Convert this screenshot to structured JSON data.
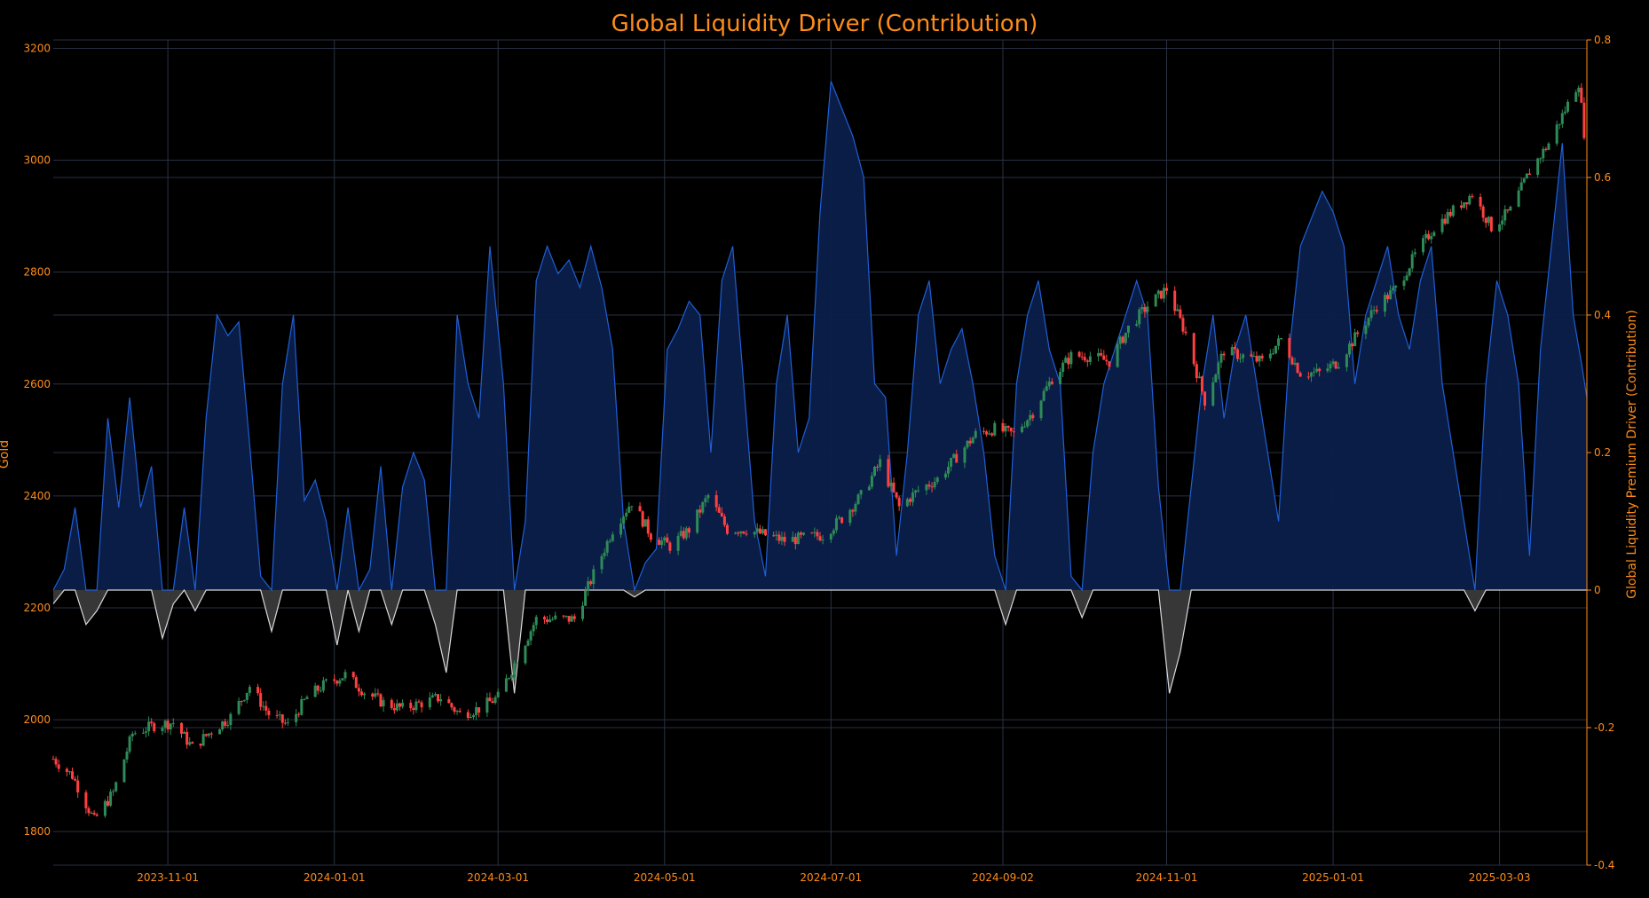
{
  "chart_data": {
    "type": "candlestick+area",
    "title": "Global Liquidity Driver (Contribution)",
    "y_left_label": "Gold",
    "y_right_label": "Global Liquidity Premium Driver (Contribution)",
    "x_ticks": [
      "2023-11-01",
      "2024-01-01",
      "2024-03-01",
      "2024-05-01",
      "2024-07-01",
      "2024-09-02",
      "2024-11-01",
      "2025-01-01",
      "2025-03-03"
    ],
    "y_left_ticks": [
      1800,
      2000,
      2200,
      2400,
      2600,
      2800,
      3000,
      3200
    ],
    "y_left_range": [
      1740,
      3215
    ],
    "y_right_ticks": [
      -0.4,
      -0.2,
      0,
      0.2,
      0.4,
      0.6,
      0.8
    ],
    "y_right_range": [
      -0.4,
      0.8
    ],
    "x_range": [
      "2023-09-20",
      "2025-04-04"
    ],
    "gold_close_path": [
      [
        "2023-09-20",
        1930
      ],
      [
        "2023-09-27",
        1900
      ],
      [
        "2023-10-05",
        1820
      ],
      [
        "2023-10-12",
        1870
      ],
      [
        "2023-10-19",
        1975
      ],
      [
        "2023-10-27",
        1990
      ],
      [
        "2023-11-03",
        1995
      ],
      [
        "2023-11-10",
        1950
      ],
      [
        "2023-11-17",
        1980
      ],
      [
        "2023-11-24",
        2005
      ],
      [
        "2023-12-01",
        2060
      ],
      [
        "2023-12-08",
        2010
      ],
      [
        "2023-12-15",
        1990
      ],
      [
        "2023-12-22",
        2040
      ],
      [
        "2023-12-29",
        2065
      ],
      [
        "2024-01-05",
        2080
      ],
      [
        "2024-01-12",
        2050
      ],
      [
        "2024-01-19",
        2030
      ],
      [
        "2024-01-26",
        2020
      ],
      [
        "2024-02-02",
        2030
      ],
      [
        "2024-02-09",
        2040
      ],
      [
        "2024-02-16",
        2010
      ],
      [
        "2024-02-23",
        2020
      ],
      [
        "2024-03-01",
        2040
      ],
      [
        "2024-03-08",
        2110
      ],
      [
        "2024-03-15",
        2180
      ],
      [
        "2024-03-22",
        2180
      ],
      [
        "2024-03-29",
        2180
      ],
      [
        "2024-04-05",
        2260
      ],
      [
        "2024-04-12",
        2340
      ],
      [
        "2024-04-19",
        2390
      ],
      [
        "2024-04-26",
        2330
      ],
      [
        "2024-05-03",
        2310
      ],
      [
        "2024-05-10",
        2340
      ],
      [
        "2024-05-17",
        2400
      ],
      [
        "2024-05-24",
        2340
      ],
      [
        "2024-05-31",
        2340
      ],
      [
        "2024-06-07",
        2330
      ],
      [
        "2024-06-14",
        2320
      ],
      [
        "2024-06-21",
        2325
      ],
      [
        "2024-06-28",
        2330
      ],
      [
        "2024-07-05",
        2360
      ],
      [
        "2024-07-12",
        2400
      ],
      [
        "2024-07-19",
        2460
      ],
      [
        "2024-07-26",
        2380
      ],
      [
        "2024-08-02",
        2410
      ],
      [
        "2024-08-09",
        2430
      ],
      [
        "2024-08-16",
        2470
      ],
      [
        "2024-08-23",
        2510
      ],
      [
        "2024-08-30",
        2520
      ],
      [
        "2024-09-06",
        2510
      ],
      [
        "2024-09-13",
        2550
      ],
      [
        "2024-09-20",
        2610
      ],
      [
        "2024-09-27",
        2650
      ],
      [
        "2024-10-04",
        2650
      ],
      [
        "2024-10-11",
        2640
      ],
      [
        "2024-10-18",
        2700
      ],
      [
        "2024-10-25",
        2740
      ],
      [
        "2024-11-01",
        2770
      ],
      [
        "2024-11-08",
        2690
      ],
      [
        "2024-11-15",
        2570
      ],
      [
        "2024-11-22",
        2660
      ],
      [
        "2024-11-29",
        2650
      ],
      [
        "2024-12-06",
        2640
      ],
      [
        "2024-12-13",
        2680
      ],
      [
        "2024-12-20",
        2620
      ],
      [
        "2024-12-27",
        2620
      ],
      [
        "2025-01-03",
        2640
      ],
      [
        "2025-01-10",
        2690
      ],
      [
        "2025-01-17",
        2740
      ],
      [
        "2025-01-24",
        2770
      ],
      [
        "2025-01-31",
        2830
      ],
      [
        "2025-02-07",
        2880
      ],
      [
        "2025-02-14",
        2910
      ],
      [
        "2025-02-21",
        2940
      ],
      [
        "2025-02-28",
        2880
      ],
      [
        "2025-03-07",
        2910
      ],
      [
        "2025-03-14",
        2980
      ],
      [
        "2025-03-21",
        3030
      ],
      [
        "2025-03-28",
        3100
      ],
      [
        "2025-04-01",
        3140
      ],
      [
        "2025-04-03",
        3050
      ],
      [
        "2025-04-04",
        2980
      ]
    ],
    "contribution_path": [
      [
        "2023-09-20",
        -0.02
      ],
      [
        "2023-09-24",
        0.03
      ],
      [
        "2023-09-28",
        0.12
      ],
      [
        "2023-10-02",
        -0.05
      ],
      [
        "2023-10-06",
        -0.03
      ],
      [
        "2023-10-10",
        0.25
      ],
      [
        "2023-10-14",
        0.12
      ],
      [
        "2023-10-18",
        0.28
      ],
      [
        "2023-10-22",
        0.12
      ],
      [
        "2023-10-26",
        0.18
      ],
      [
        "2023-10-30",
        -0.07
      ],
      [
        "2023-11-03",
        -0.02
      ],
      [
        "2023-11-07",
        0.12
      ],
      [
        "2023-11-11",
        -0.03
      ],
      [
        "2023-11-15",
        0.25
      ],
      [
        "2023-11-19",
        0.4
      ],
      [
        "2023-11-23",
        0.37
      ],
      [
        "2023-11-27",
        0.39
      ],
      [
        "2023-12-01",
        0.21
      ],
      [
        "2023-12-05",
        0.02
      ],
      [
        "2023-12-09",
        -0.06
      ],
      [
        "2023-12-13",
        0.3
      ],
      [
        "2023-12-17",
        0.4
      ],
      [
        "2023-12-21",
        0.13
      ],
      [
        "2023-12-25",
        0.16
      ],
      [
        "2023-12-29",
        0.1
      ],
      [
        "2024-01-02",
        -0.08
      ],
      [
        "2024-01-06",
        0.12
      ],
      [
        "2024-01-10",
        -0.06
      ],
      [
        "2024-01-14",
        0.03
      ],
      [
        "2024-01-18",
        0.18
      ],
      [
        "2024-01-22",
        -0.05
      ],
      [
        "2024-01-26",
        0.15
      ],
      [
        "2024-01-30",
        0.2
      ],
      [
        "2024-02-03",
        0.16
      ],
      [
        "2024-02-07",
        -0.05
      ],
      [
        "2024-02-11",
        -0.12
      ],
      [
        "2024-02-15",
        0.4
      ],
      [
        "2024-02-19",
        0.3
      ],
      [
        "2024-02-23",
        0.25
      ],
      [
        "2024-02-27",
        0.5
      ],
      [
        "2024-03-03",
        0.3
      ],
      [
        "2024-03-07",
        -0.15
      ],
      [
        "2024-03-11",
        0.1
      ],
      [
        "2024-03-15",
        0.45
      ],
      [
        "2024-03-19",
        0.5
      ],
      [
        "2024-03-23",
        0.46
      ],
      [
        "2024-03-27",
        0.48
      ],
      [
        "2024-03-31",
        0.44
      ],
      [
        "2024-04-04",
        0.5
      ],
      [
        "2024-04-08",
        0.44
      ],
      [
        "2024-04-12",
        0.35
      ],
      [
        "2024-04-16",
        0.1
      ],
      [
        "2024-04-20",
        -0.01
      ],
      [
        "2024-04-24",
        0.04
      ],
      [
        "2024-04-28",
        0.06
      ],
      [
        "2024-05-02",
        0.35
      ],
      [
        "2024-05-06",
        0.38
      ],
      [
        "2024-05-10",
        0.42
      ],
      [
        "2024-05-14",
        0.4
      ],
      [
        "2024-05-18",
        0.2
      ],
      [
        "2024-05-22",
        0.45
      ],
      [
        "2024-05-26",
        0.5
      ],
      [
        "2024-05-30",
        0.3
      ],
      [
        "2024-06-03",
        0.1
      ],
      [
        "2024-06-07",
        0.02
      ],
      [
        "2024-06-11",
        0.3
      ],
      [
        "2024-06-15",
        0.4
      ],
      [
        "2024-06-19",
        0.2
      ],
      [
        "2024-06-23",
        0.25
      ],
      [
        "2024-06-27",
        0.55
      ],
      [
        "2024-07-01",
        0.74
      ],
      [
        "2024-07-05",
        0.7
      ],
      [
        "2024-07-09",
        0.66
      ],
      [
        "2024-07-13",
        0.6
      ],
      [
        "2024-07-17",
        0.3
      ],
      [
        "2024-07-21",
        0.28
      ],
      [
        "2024-07-25",
        0.05
      ],
      [
        "2024-07-29",
        0.2
      ],
      [
        "2024-08-02",
        0.4
      ],
      [
        "2024-08-06",
        0.45
      ],
      [
        "2024-08-10",
        0.3
      ],
      [
        "2024-08-14",
        0.35
      ],
      [
        "2024-08-18",
        0.38
      ],
      [
        "2024-08-22",
        0.3
      ],
      [
        "2024-08-26",
        0.2
      ],
      [
        "2024-08-30",
        0.05
      ],
      [
        "2024-09-03",
        -0.05
      ],
      [
        "2024-09-07",
        0.3
      ],
      [
        "2024-09-11",
        0.4
      ],
      [
        "2024-09-15",
        0.45
      ],
      [
        "2024-09-19",
        0.35
      ],
      [
        "2024-09-23",
        0.3
      ],
      [
        "2024-09-27",
        0.02
      ],
      [
        "2024-10-01",
        -0.04
      ],
      [
        "2024-10-05",
        0.2
      ],
      [
        "2024-10-09",
        0.3
      ],
      [
        "2024-10-13",
        0.35
      ],
      [
        "2024-10-17",
        0.4
      ],
      [
        "2024-10-21",
        0.45
      ],
      [
        "2024-10-25",
        0.4
      ],
      [
        "2024-10-29",
        0.15
      ],
      [
        "2024-11-02",
        -0.15
      ],
      [
        "2024-11-06",
        -0.09
      ],
      [
        "2024-11-10",
        0.15
      ],
      [
        "2024-11-14",
        0.3
      ],
      [
        "2024-11-18",
        0.4
      ],
      [
        "2024-11-22",
        0.25
      ],
      [
        "2024-11-26",
        0.35
      ],
      [
        "2024-11-30",
        0.4
      ],
      [
        "2024-12-04",
        0.3
      ],
      [
        "2024-12-08",
        0.2
      ],
      [
        "2024-12-12",
        0.1
      ],
      [
        "2024-12-16",
        0.35
      ],
      [
        "2024-12-20",
        0.5
      ],
      [
        "2024-12-24",
        0.54
      ],
      [
        "2024-12-28",
        0.58
      ],
      [
        "2025-01-01",
        0.55
      ],
      [
        "2025-01-05",
        0.5
      ],
      [
        "2025-01-09",
        0.3
      ],
      [
        "2025-01-13",
        0.4
      ],
      [
        "2025-01-17",
        0.45
      ],
      [
        "2025-01-21",
        0.5
      ],
      [
        "2025-01-25",
        0.4
      ],
      [
        "2025-01-29",
        0.35
      ],
      [
        "2025-02-02",
        0.45
      ],
      [
        "2025-02-06",
        0.5
      ],
      [
        "2025-02-10",
        0.3
      ],
      [
        "2025-02-14",
        0.2
      ],
      [
        "2025-02-18",
        0.1
      ],
      [
        "2025-02-22",
        -0.03
      ],
      [
        "2025-02-26",
        0.3
      ],
      [
        "2025-03-02",
        0.45
      ],
      [
        "2025-03-06",
        0.4
      ],
      [
        "2025-03-10",
        0.3
      ],
      [
        "2025-03-14",
        0.05
      ],
      [
        "2025-03-18",
        0.35
      ],
      [
        "2025-03-22",
        0.5
      ],
      [
        "2025-03-26",
        0.65
      ],
      [
        "2025-03-30",
        0.4
      ],
      [
        "2025-04-02",
        0.33
      ],
      [
        "2025-04-04",
        0.28
      ]
    ]
  },
  "colors": {
    "up": "#2e8b57",
    "down": "#ff4040",
    "line_pos": "#1f5fd6",
    "fill_pos": "#0b1f4a",
    "line_neg": "#d8d8d8",
    "fill_neg": "#3a3a3a",
    "grid": "#2a3142",
    "text": "#ff8c1a"
  }
}
